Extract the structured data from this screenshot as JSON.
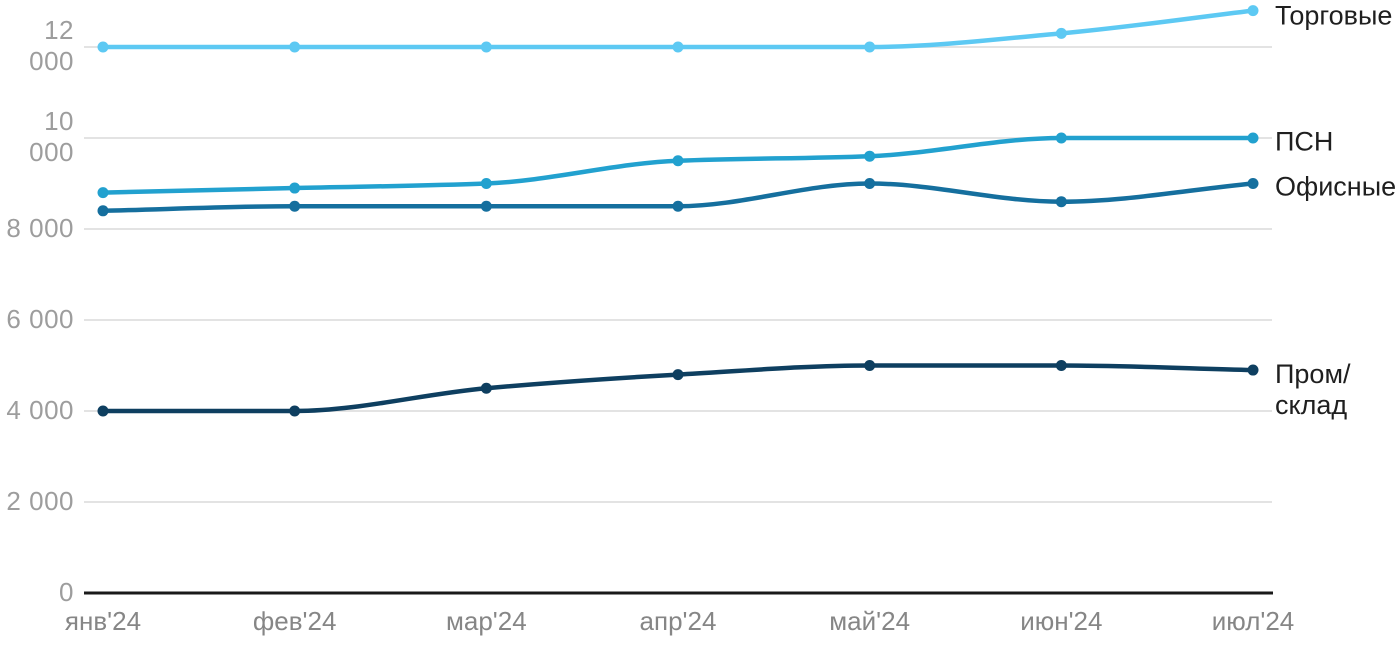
{
  "chart_data": {
    "type": "line",
    "title": "",
    "xlabel": "",
    "ylabel": "",
    "x_categories": [
      "янв'24",
      "фев'24",
      "мар'24",
      "апр'24",
      "май'24",
      "июн'24",
      "июл'24"
    ],
    "y_ticks": [
      {
        "value": 0,
        "label": "0"
      },
      {
        "value": 2000,
        "label": "2 000"
      },
      {
        "value": 4000,
        "label": "4 000"
      },
      {
        "value": 6000,
        "label": "6 000"
      },
      {
        "value": 8000,
        "label": "8 000"
      },
      {
        "value": 10000,
        "label": "10 000"
      },
      {
        "value": 12000,
        "label": "12 000"
      }
    ],
    "ylim": [
      0,
      13050
    ],
    "grid": "horizontal-only",
    "legend_position": "inline-right-of-line-ends",
    "curve": "smooth-monotone",
    "series": [
      {
        "name": "Торговые",
        "slug": "torgovye",
        "color": "#5DC9F3",
        "values": [
          12000,
          12000,
          12000,
          12000,
          12000,
          12300,
          12800
        ],
        "label_dy": 5
      },
      {
        "name": "ПСН",
        "slug": "psn",
        "color": "#22A1CF",
        "values": [
          8800,
          8900,
          9000,
          9500,
          9600,
          10000,
          10000
        ],
        "label_dy": 4
      },
      {
        "name": "Офисные",
        "slug": "ofisnye",
        "color": "#156F9E",
        "values": [
          8400,
          8500,
          8500,
          8500,
          9000,
          8600,
          9000
        ],
        "label_dy": 3
      },
      {
        "name": "Пром/склад",
        "slug": "prom-sklad",
        "color": "#0E3F60",
        "values": [
          4000,
          4000,
          4500,
          4800,
          5000,
          5000,
          4900
        ],
        "label_dy": 20,
        "label_wrap": true
      }
    ],
    "colors": {
      "background": "#FFFFFF",
      "gridline": "#E3E3E3",
      "axis_line": "#1A1A1A",
      "y_tick_text": "#9D9D9D",
      "x_tick_text": "#868686",
      "series_label_text": "#1F1F1F"
    }
  }
}
